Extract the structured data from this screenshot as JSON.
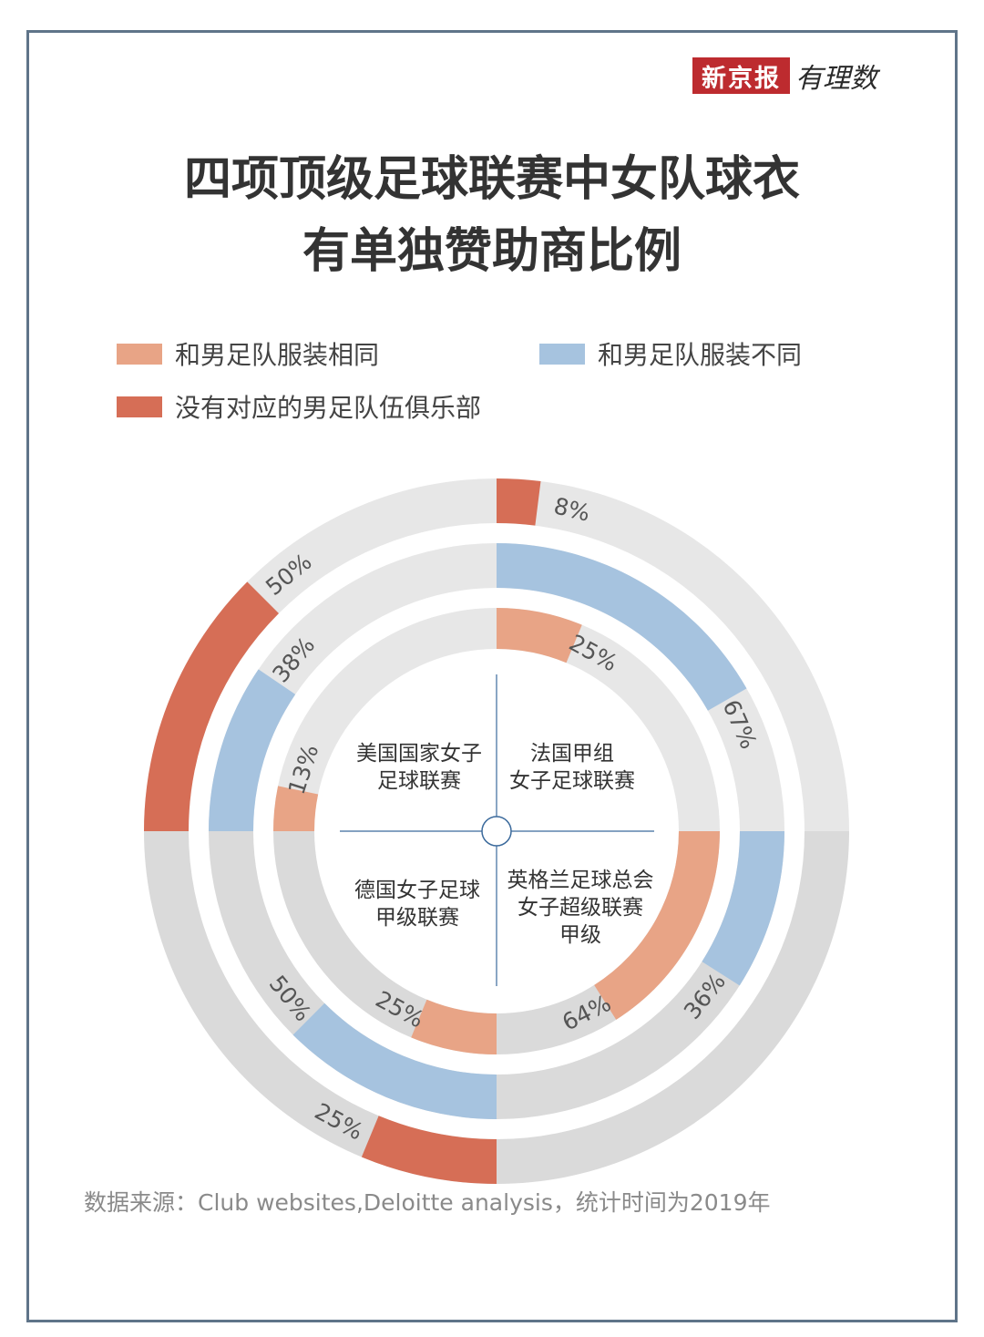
{
  "header": {
    "logo_brand": "新京报",
    "logo_script": "有理数",
    "title_line1": "四项顶级足球联赛中女队球衣",
    "title_line2": "有单独赞助商比例"
  },
  "legend": [
    {
      "label": "和男足队服装相同",
      "color": "#e8a486"
    },
    {
      "label": "和男足队服装不同",
      "color": "#a6c3df"
    },
    {
      "label": "没有对应的男足队伍俱乐部",
      "color": "#d66e56"
    }
  ],
  "footer": {
    "source": "数据来源：Club websites,Deloitte analysis，统计时间为2019年"
  },
  "colors": {
    "same": "#e8a486",
    "different": "#a6c3df",
    "no_club": "#d66e56",
    "track_light": "#e7e7e7",
    "track_dark": "#dadada",
    "axis": "#3b6a9c"
  },
  "chart_data": {
    "type": "radial_bar",
    "series_rings": [
      "和男足队服装相同",
      "和男足队服装不同",
      "没有对应的男足队伍俱乐部"
    ],
    "categories": [
      {
        "name": "法国甲组女子足球联赛",
        "label_lines": [
          "法国甲组",
          "女子足球联赛"
        ],
        "values": [
          25,
          67,
          8
        ],
        "labels": [
          "25%",
          "67%",
          "8%"
        ]
      },
      {
        "name": "英格兰足球总会女子超级联赛甲级",
        "label_lines": [
          "英格兰足球总会",
          "女子超级联赛",
          "甲级"
        ],
        "values": [
          64,
          36,
          0
        ],
        "labels": [
          "64%",
          "36%",
          ""
        ]
      },
      {
        "name": "德国女子足球甲级联赛",
        "label_lines": [
          "德国女子足球",
          "甲级联赛"
        ],
        "values": [
          25,
          50,
          25
        ],
        "labels": [
          "25%",
          "50%",
          "25%"
        ]
      },
      {
        "name": "美国国家女子足球联赛",
        "label_lines": [
          "美国国家女子",
          "足球联赛"
        ],
        "values": [
          13,
          38,
          50
        ],
        "labels": [
          "13%",
          "38%",
          "50%"
        ]
      }
    ]
  }
}
